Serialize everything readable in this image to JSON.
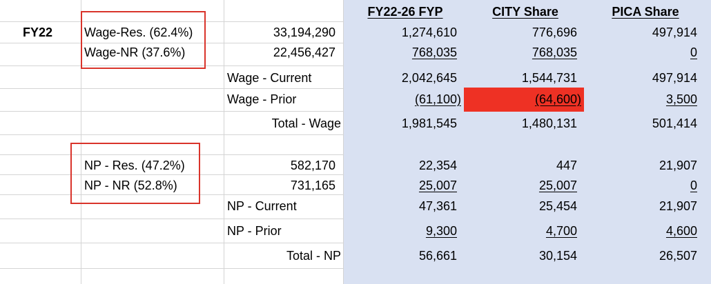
{
  "headers": {
    "fyp": "FY22-26 FYP",
    "city": "CITY Share",
    "pica": "PICA Share"
  },
  "rows": [
    {
      "year": "FY22",
      "label": "Wage-Res. (62.4%)",
      "amount": "33,194,290",
      "fyp": "1,274,610",
      "city": "776,696",
      "pica": "497,914"
    },
    {
      "label": "Wage-NR (37.6%)",
      "amount": "22,456,427",
      "fyp": "768,035",
      "city": "768,035",
      "pica": "0"
    },
    {
      "sublabel": "Wage - Current",
      "fyp": "2,042,645",
      "city": "1,544,731",
      "pica": "497,914"
    },
    {
      "sublabel": "Wage - Prior",
      "fyp": "(61,100)",
      "city": "(64,600)",
      "pica": "3,500"
    },
    {
      "sublabel": "Total - Wage",
      "fyp": "1,981,545",
      "city": "1,480,131",
      "pica": "501,414"
    },
    {
      "label": "NP - Res. (47.2%)",
      "amount": "582,170",
      "fyp": "22,354",
      "city": "447",
      "pica": "21,907"
    },
    {
      "label": "NP - NR (52.8%)",
      "amount": "731,165",
      "fyp": "25,007",
      "city": "25,007",
      "pica": "0"
    },
    {
      "sublabel": "NP - Current",
      "fyp": "47,361",
      "city": "25,454",
      "pica": "21,907"
    },
    {
      "sublabel": "NP - Prior",
      "fyp": "9,300",
      "city": "4,700",
      "pica": "4,600"
    },
    {
      "sublabel": "Total - NP",
      "fyp": "56,661",
      "city": "30,154",
      "pica": "26,507"
    }
  ]
}
